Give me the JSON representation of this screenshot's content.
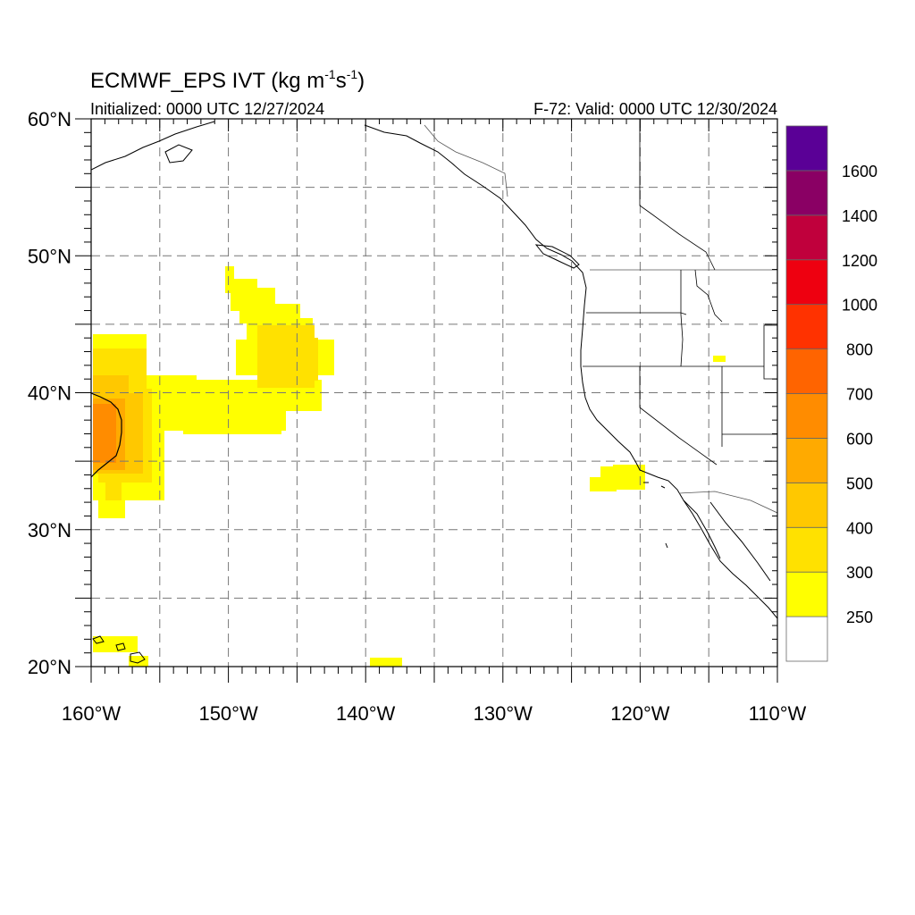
{
  "header": {
    "title": "ECMWF_EPS IVT (kg m",
    "title_sup1": "-1",
    "title_mid": "s",
    "title_sup2": "-1",
    "title_end": ")",
    "init_text": "Initialized: 0000 UTC 12/27/2024",
    "valid_text": "F-72: Valid: 0000 UTC 12/30/2024"
  },
  "axes": {
    "lon_labels": [
      "160°W",
      "150°W",
      "140°W",
      "130°W",
      "120°W",
      "110°W"
    ],
    "lat_labels": [
      "20°N",
      "30°N",
      "40°N",
      "50°N",
      "60°N"
    ],
    "lon_range": [
      -160,
      -110
    ],
    "lat_range": [
      20,
      60
    ],
    "gridlines": "dashed",
    "grid_lon_step": 5,
    "grid_lat_step": 5
  },
  "colorbar": {
    "labels": [
      "250",
      "300",
      "400",
      "500",
      "600",
      "700",
      "800",
      "1000",
      "1200",
      "1400",
      "1600"
    ],
    "bins": [
      {
        "max": 250,
        "color": "#ffffff"
      },
      {
        "min": 250,
        "max": 300,
        "color": "#ffff00"
      },
      {
        "min": 300,
        "max": 400,
        "color": "#ffe100"
      },
      {
        "min": 400,
        "max": 500,
        "color": "#ffc800"
      },
      {
        "min": 500,
        "max": 600,
        "color": "#ffaa00"
      },
      {
        "min": 600,
        "max": 700,
        "color": "#ff8c00"
      },
      {
        "min": 700,
        "max": 800,
        "color": "#ff6400"
      },
      {
        "min": 800,
        "max": 1000,
        "color": "#ff3200"
      },
      {
        "min": 1000,
        "max": 1200,
        "color": "#ee0010"
      },
      {
        "min": 1200,
        "max": 1400,
        "color": "#c0003c"
      },
      {
        "min": 1400,
        "max": 1600,
        "color": "#8a0064"
      },
      {
        "min": 1600,
        "color": "#5a0096"
      }
    ]
  },
  "ivt_field": {
    "units": "kg m-1 s-1",
    "regions": [
      {
        "region": "central North Pacific plume (west edge)",
        "approx_center": [
          -159.5,
          37
        ],
        "peak_class": "600-700"
      },
      {
        "region": "plume arm toward Pacific Northwest",
        "approx_center": [
          -146,
          43
        ],
        "peak_class": "300-400"
      },
      {
        "region": "off Southern California",
        "approx_center": [
          -121.5,
          33.8
        ],
        "peak_class": "250-300"
      },
      {
        "region": "near Hawaii",
        "approx_center": [
          -157,
          21.5
        ],
        "peak_class": "250-300"
      },
      {
        "region": "east of Hawaii",
        "approx_center": [
          -139,
          20.3
        ],
        "peak_class": "250-300"
      },
      {
        "region": "Intermountain West",
        "approx_center": [
          -114,
          42.6
        ],
        "peak_class": "250-300"
      }
    ]
  }
}
